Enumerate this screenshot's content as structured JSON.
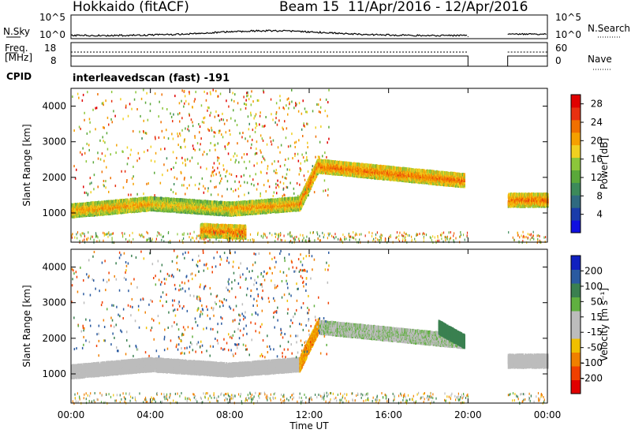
{
  "header": {
    "site": "Hokkaido (fitACF)",
    "beam": "Beam 15",
    "dates": "11/Apr/2016 - 12/Apr/2016"
  },
  "strip_labels": {
    "nsky": "N.Sky",
    "nsky_top": "10^5",
    "nsky_bottom": "10^0",
    "nsearch": "N.Search",
    "nsearch_top": "10^5",
    "nsearch_bottom": "10^0",
    "freq": "Freq.",
    "freq_unit": "[MHz]",
    "freq_top": "18",
    "freq_bottom": "8",
    "nave": "Nave",
    "nave_top": "60",
    "nave_bottom": "0",
    "cpid": "CPID",
    "cpid_value": "interleavedscan (fast) -191"
  },
  "colors": {
    "power": [
      "#1010e0",
      "#1a3caa",
      "#2f6a80",
      "#3c8a5a",
      "#5aa83a",
      "#8cc63a",
      "#f0d020",
      "#f5a000",
      "#f07000",
      "#e83010",
      "#e00000"
    ],
    "velocity": [
      "#1020c0",
      "#2a5aa0",
      "#3a8050",
      "#60b040",
      "#bcbcbc",
      "#bcbcbc",
      "#f0c000",
      "#f08000",
      "#f04000",
      "#e00000"
    ]
  },
  "chart_data": [
    {
      "type": "heatmap",
      "name": "power",
      "xlabel": "",
      "ylabel": "Slant Range [km]",
      "x_ticks": [
        "00:00",
        "04:00",
        "08:00",
        "12:00",
        "16:00",
        "20:00",
        "00:00"
      ],
      "x_tick_hours": [
        0,
        4,
        8,
        12,
        16,
        20,
        24
      ],
      "xlim_hours": [
        0,
        24
      ],
      "ylim_km": [
        180,
        4500
      ],
      "y_ticks": [
        1000,
        2000,
        3000,
        4000
      ],
      "colorbar_label": "Power [dB]",
      "colorbar_ticks": [
        4,
        8,
        12,
        16,
        20,
        24,
        28
      ],
      "colorbar_range": [
        0,
        30
      ],
      "data_gap_hours": [
        20,
        22
      ],
      "echo_bands": [
        {
          "start_h": 0.0,
          "end_h": 4.0,
          "range_km_start": 1050,
          "range_km_end": 1250,
          "power_db": 22
        },
        {
          "start_h": 4.0,
          "end_h": 8.0,
          "range_km_start": 1250,
          "range_km_end": 1100,
          "power_db": 20
        },
        {
          "start_h": 8.0,
          "end_h": 11.5,
          "range_km_start": 1100,
          "range_km_end": 1250,
          "power_db": 22
        },
        {
          "start_h": 11.5,
          "end_h": 12.5,
          "range_km_start": 1250,
          "range_km_end": 2400,
          "power_db": 24
        },
        {
          "start_h": 12.5,
          "end_h": 19.8,
          "range_km_start": 2300,
          "range_km_end": 1900,
          "power_db": 24
        },
        {
          "start_h": 6.5,
          "end_h": 8.8,
          "range_km_start": 500,
          "range_km_end": 450,
          "power_db": 24
        },
        {
          "start_h": 22.0,
          "end_h": 24.0,
          "range_km_start": 1350,
          "range_km_end": 1350,
          "power_db": 24
        }
      ]
    },
    {
      "type": "heatmap",
      "name": "velocity",
      "xlabel": "Time UT",
      "ylabel": "Slant Range [km]",
      "x_ticks": [
        "00:00",
        "04:00",
        "08:00",
        "12:00",
        "16:00",
        "20:00",
        "00:00"
      ],
      "x_tick_hours": [
        0,
        4,
        8,
        12,
        16,
        20,
        24
      ],
      "xlim_hours": [
        0,
        24
      ],
      "ylim_km": [
        180,
        4500
      ],
      "y_ticks": [
        1000,
        2000,
        3000,
        4000
      ],
      "colorbar_label": "Velocity [m s⁻¹]",
      "colorbar_ticks": [
        "200",
        "100",
        "50",
        "15",
        "-15",
        "-50",
        "-100",
        "-200"
      ],
      "data_gap_hours": [
        20,
        22
      ],
      "echo_bands": [
        {
          "start_h": 0.0,
          "end_h": 4.0,
          "range_km_start": 1050,
          "range_km_end": 1250,
          "velocity": 0
        },
        {
          "start_h": 4.0,
          "end_h": 8.0,
          "range_km_start": 1250,
          "range_km_end": 1100,
          "velocity": 0
        },
        {
          "start_h": 8.0,
          "end_h": 11.5,
          "range_km_start": 1100,
          "range_km_end": 1250,
          "velocity": 0
        },
        {
          "start_h": 11.5,
          "end_h": 12.5,
          "range_km_start": 1250,
          "range_km_end": 2400,
          "velocity": -30
        },
        {
          "start_h": 12.5,
          "end_h": 19.8,
          "range_km_start": 2300,
          "range_km_end": 1900,
          "velocity": 10
        },
        {
          "start_h": 18.5,
          "end_h": 19.8,
          "range_km_start": 2300,
          "range_km_end": 1900,
          "velocity": 60
        },
        {
          "start_h": 22.0,
          "end_h": 24.0,
          "range_km_start": 1350,
          "range_km_end": 1350,
          "velocity": 0
        }
      ]
    }
  ]
}
